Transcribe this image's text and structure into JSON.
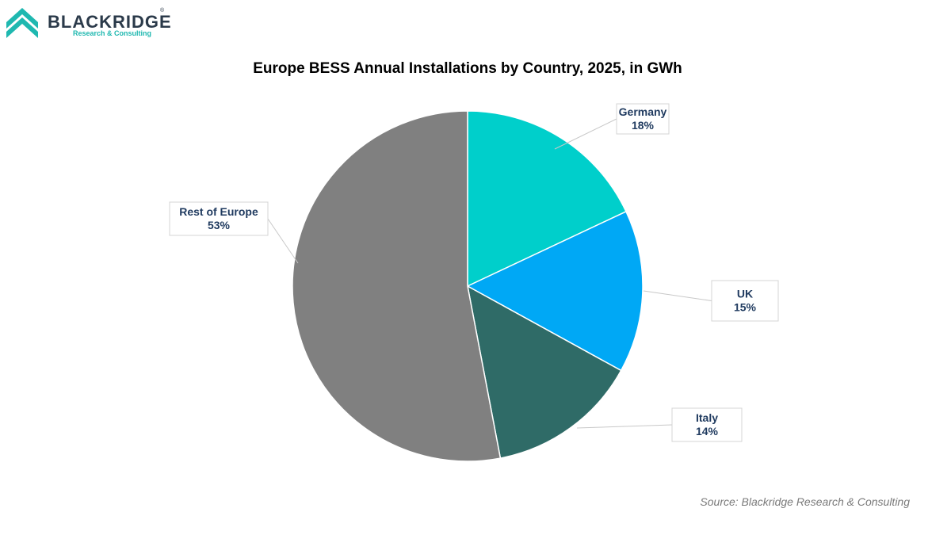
{
  "brand": {
    "name": "BLACKRIDGE",
    "registered": "®",
    "tagline": "Research & Consulting",
    "color_dark": "#2b3a4a",
    "color_accent": "#1fb8b0"
  },
  "chart_data": {
    "type": "pie",
    "title": "Europe BESS Annual Installations by Country, 2025, in GWh",
    "slices": [
      {
        "name": "Germany",
        "value": 18,
        "label": "18%",
        "color": "#00cfcb"
      },
      {
        "name": "UK",
        "value": 15,
        "label": "15%",
        "color": "#00a8f5"
      },
      {
        "name": "Italy",
        "value": 14,
        "label": "14%",
        "color": "#2f6b67"
      },
      {
        "name": "Rest of Europe",
        "value": 53,
        "label": "53%",
        "color": "#808080"
      }
    ],
    "label_text_color": "#1f3a5f",
    "legend": "none"
  },
  "source": "Source: Blackridge Research & Consulting"
}
